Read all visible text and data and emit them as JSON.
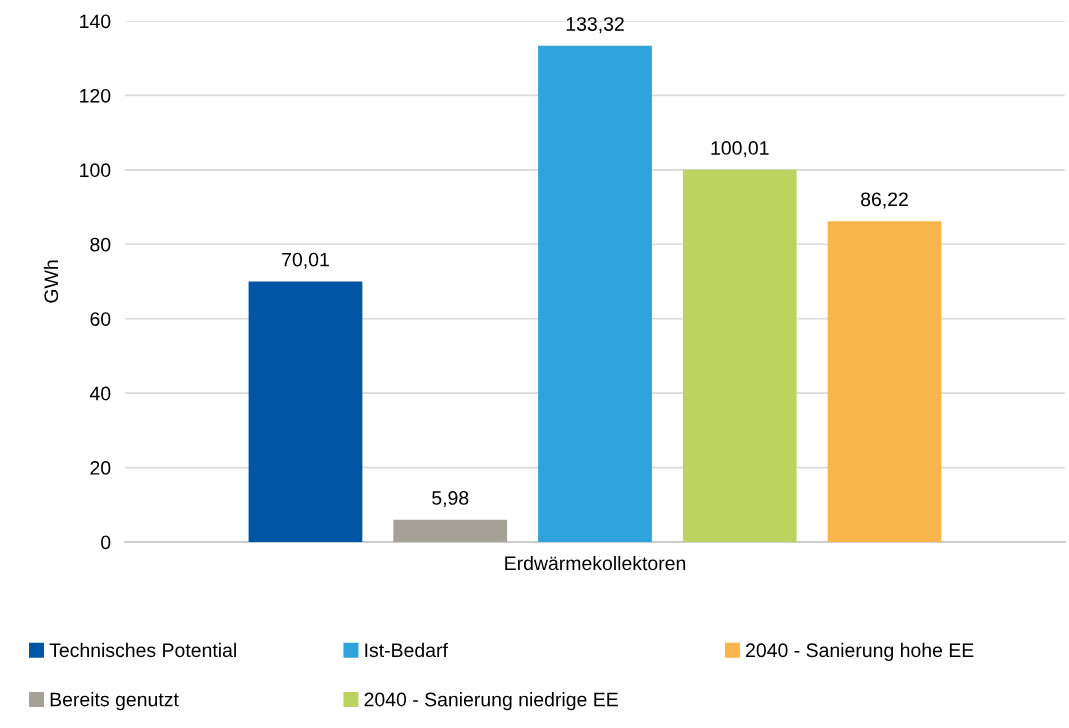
{
  "chart_data": {
    "type": "bar",
    "categories": [
      "Erdwärmekollektoren"
    ],
    "series": [
      {
        "name": "Technisches Potential",
        "color": "#0055a5",
        "values": [
          70.01
        ],
        "value_labels": [
          "70,01"
        ]
      },
      {
        "name": "Bereits genutzt",
        "color": "#a6a197",
        "values": [
          5.98
        ],
        "value_labels": [
          "5,98"
        ]
      },
      {
        "name": "Ist-Bedarf",
        "color": "#2ea3dc",
        "values": [
          133.32
        ],
        "value_labels": [
          "133,32"
        ]
      },
      {
        "name": "2040 - Sanierung niedrige EE",
        "color": "#bcd360",
        "values": [
          100.01
        ],
        "value_labels": [
          "100,01"
        ]
      },
      {
        "name": "2040 - Sanierung hohe EE",
        "color": "#f9b54a",
        "values": [
          86.22
        ],
        "value_labels": [
          "86,22"
        ]
      }
    ],
    "ylabel": "GWh",
    "ylim": [
      0,
      140
    ],
    "yticks": [
      0,
      20,
      40,
      60,
      80,
      100,
      120,
      140
    ],
    "grid": "y",
    "legend": "bottom"
  }
}
